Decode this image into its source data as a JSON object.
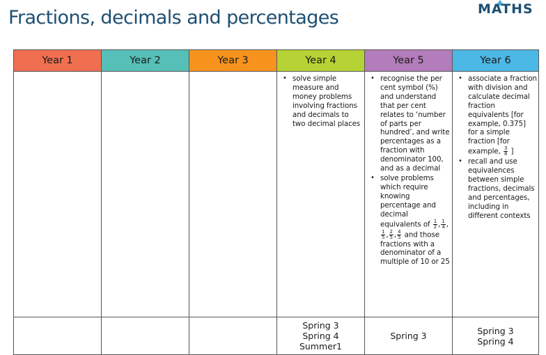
{
  "title": "Fractions, decimals and percentages",
  "logo": {
    "text": "MATHS",
    "accent_color": "#4aa8dd",
    "text_color": "#1d4f73"
  },
  "years": [
    {
      "label": "Year 1",
      "color": "#ef6f50",
      "objectives": [],
      "terms": []
    },
    {
      "label": "Year 2",
      "color": "#56bfb8",
      "objectives": [],
      "terms": []
    },
    {
      "label": "Year 3",
      "color": "#f7931d",
      "objectives": [],
      "terms": []
    },
    {
      "label": "Year 4",
      "color": "#b5d334",
      "objectives": [
        {
          "text": "solve simple measure and money problems involving fractions and decimals to two decimal places"
        }
      ],
      "terms": [
        "Spring 3",
        "Spring 4",
        "Summer1"
      ]
    },
    {
      "label": "Year 5",
      "color": "#b37cba",
      "objectives": [
        {
          "text": "recognise the per cent symbol (%) and understand that per cent relates to ‘number of parts per hundred’, and write percentages as a fraction with denominator 100, and as a decimal"
        },
        {
          "text_before": "solve problems which require knowing percentage and decimal equivalents of",
          "fractions": [
            {
              "num": "1",
              "den": "2",
              "sep": ","
            },
            {
              "num": "1",
              "den": "4",
              "sep": ","
            },
            {
              "num": "1",
              "den": "5",
              "sep": ","
            },
            {
              "num": "2",
              "den": "5",
              "sep": ","
            },
            {
              "num": "4",
              "den": "5",
              "sep": ""
            }
          ],
          "text_after": "and those fractions with a denominator of a multiple of 10 or 25"
        }
      ],
      "terms": [
        "Spring 3"
      ]
    },
    {
      "label": "Year 6",
      "color": "#4cb8e6",
      "objectives": [
        {
          "text_before": "associate a fraction with division and calculate decimal fraction equivalents [for example, 0.375] for a simple fraction [for example,",
          "fractions": [
            {
              "num": "3",
              "den": "8",
              "sep": ""
            }
          ],
          "text_after": "]"
        },
        {
          "text": "recall and use equivalences between simple fractions, decimals and percentages, including in different contexts"
        }
      ],
      "terms": [
        "Spring 3",
        "Spring 4"
      ]
    }
  ]
}
